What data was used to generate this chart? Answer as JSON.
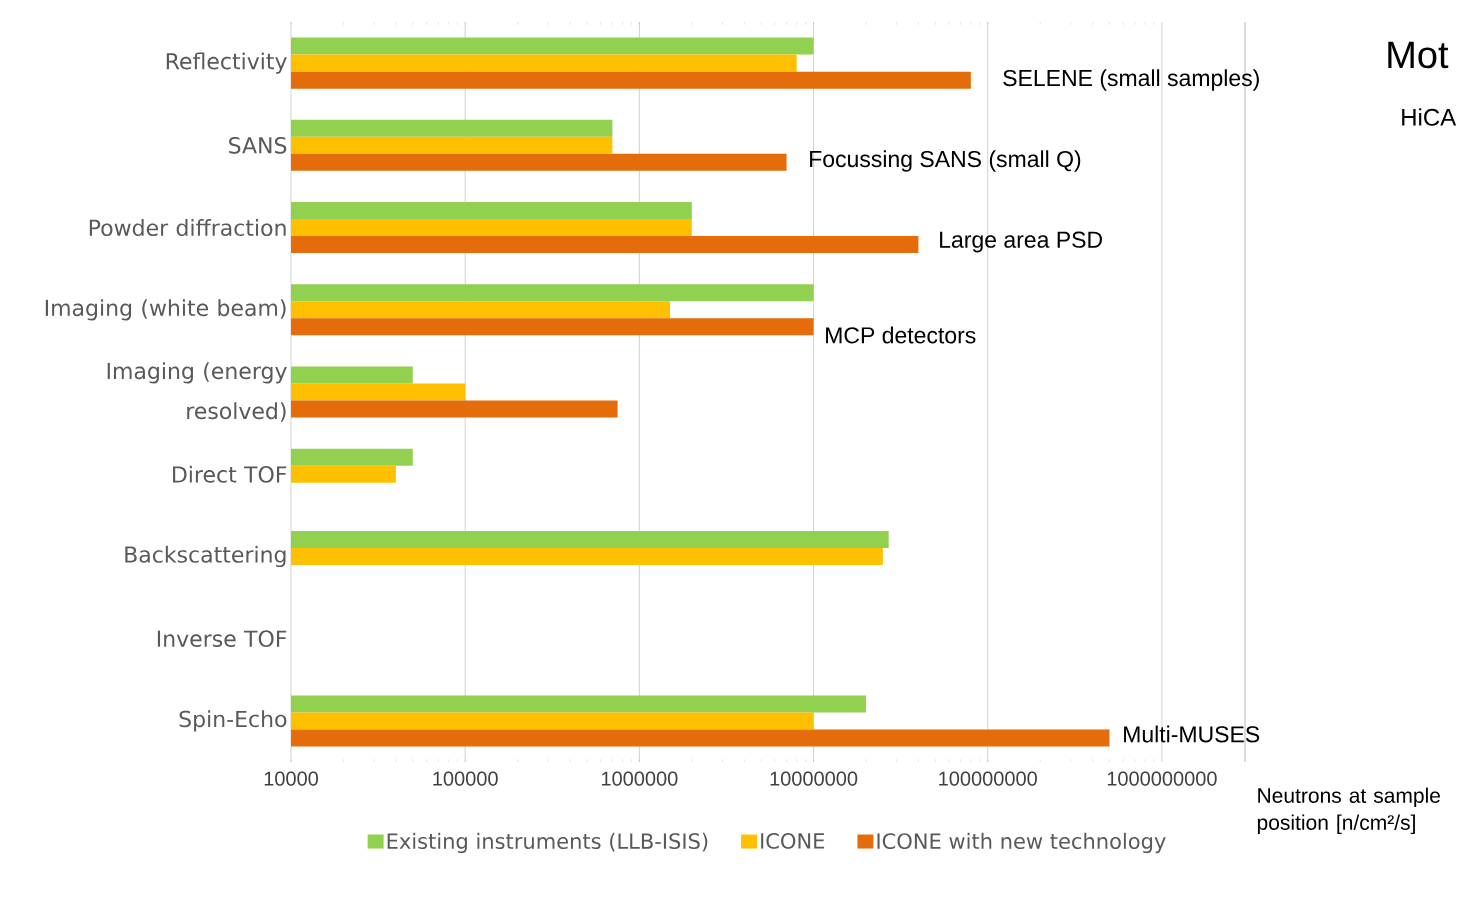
{
  "chart_data": {
    "type": "bar",
    "orientation": "horizontal",
    "log": "x",
    "categories": [
      "Reflectivity",
      "SANS",
      "Powder diffraction",
      "Imaging (white beam)",
      "Imaging (energy resolved)",
      "Direct TOF",
      "Backscattering",
      "Inverse TOF",
      "Spin-Echo"
    ],
    "series": [
      {
        "name": "Existing instruments (LLB-ISIS)",
        "color": "#92d050",
        "values": [
          10000000,
          700000,
          2000000,
          10000000,
          50000,
          50000,
          27000000,
          null,
          20000000
        ]
      },
      {
        "name": "ICONE",
        "color": "#ffc000",
        "values": [
          8000000,
          700000,
          2000000,
          1500000,
          100000,
          40000,
          25000000,
          null,
          10000000
        ]
      },
      {
        "name": "ICONE with new technology",
        "color": "#e46c0a",
        "values": [
          80000000,
          7000000,
          40000000,
          10000000,
          750000,
          null,
          null,
          null,
          500000000
        ]
      }
    ],
    "xlim": [
      10000,
      3000000000
    ],
    "xticks": [
      10000,
      100000,
      1000000,
      10000000,
      100000000,
      1000000000
    ],
    "xlabel": "Neutrons at sample position [n/cm²/s]",
    "grid": "x",
    "legend": "bottom",
    "annotations": [
      "SELENE (small samples)",
      "Focussing SANS (small Q)",
      "Large area PSD",
      "MCP detectors",
      "Multi-MUSES",
      "Mot",
      "HiCA"
    ]
  }
}
